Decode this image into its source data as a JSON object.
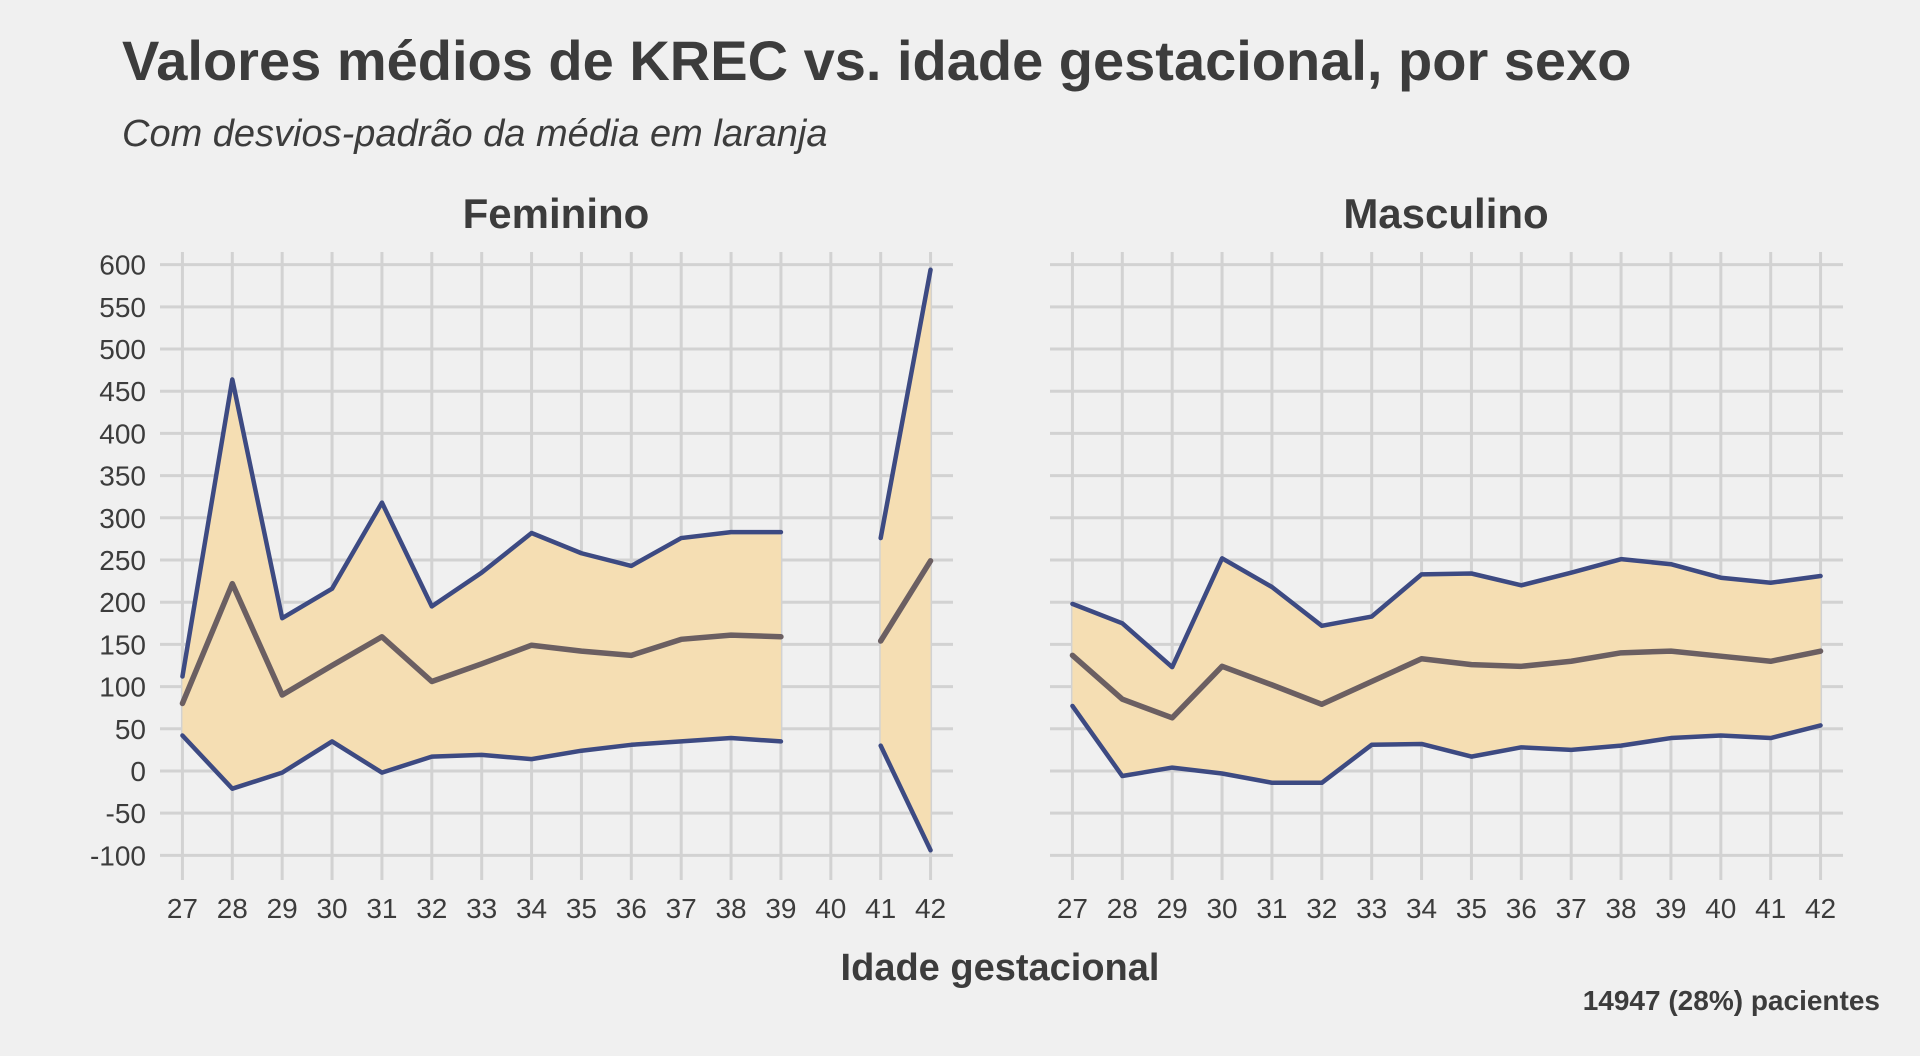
{
  "chart_data": {
    "type": "line",
    "title": "Valores médios de KREC vs. idade gestacional, por sexo",
    "subtitle": "Com desvios-padrão da média em laranja",
    "xlabel": "Idade gestacional",
    "ylabel": "",
    "caption": "14947 (28%) pacientes",
    "ylim": [
      -100,
      600
    ],
    "yticks": [
      -100,
      -50,
      0,
      50,
      100,
      150,
      200,
      250,
      300,
      350,
      400,
      450,
      500,
      550,
      600
    ],
    "xticks": [
      27,
      28,
      29,
      30,
      31,
      32,
      33,
      34,
      35,
      36,
      37,
      38,
      39,
      40,
      41,
      42
    ],
    "grid": true,
    "colors": {
      "band": "#f5deb3",
      "sd_line": "#3d4a82",
      "mean_line": "#6b5f62",
      "grid": "#d2d2d2",
      "background": "#f0f0f0"
    },
    "facets": [
      {
        "label": "Feminino",
        "x": [
          27,
          28,
          29,
          30,
          31,
          32,
          33,
          34,
          35,
          36,
          37,
          38,
          39,
          40,
          41,
          42
        ],
        "mean": [
          80,
          222,
          90,
          125,
          159,
          106,
          127,
          149,
          142,
          137,
          156,
          161,
          159,
          null,
          154,
          249
        ],
        "upper": [
          112,
          464,
          181,
          216,
          318,
          195,
          235,
          282,
          258,
          243,
          276,
          283,
          283,
          null,
          276,
          594
        ],
        "lower": [
          42,
          -21,
          -2,
          35,
          -2,
          17,
          19,
          14,
          24,
          31,
          35,
          39,
          35,
          null,
          30,
          -94
        ]
      },
      {
        "label": "Masculino",
        "x": [
          27,
          28,
          29,
          30,
          31,
          32,
          33,
          34,
          35,
          36,
          37,
          38,
          39,
          40,
          41,
          42
        ],
        "mean": [
          137,
          85,
          63,
          124,
          102,
          79,
          106,
          133,
          126,
          124,
          130,
          140,
          142,
          136,
          130,
          142
        ],
        "upper": [
          198,
          175,
          123,
          252,
          218,
          172,
          183,
          233,
          234,
          220,
          235,
          251,
          245,
          229,
          223,
          231
        ],
        "lower": [
          77,
          -6,
          4,
          -3,
          -14,
          -14,
          31,
          32,
          17,
          28,
          25,
          30,
          39,
          42,
          39,
          54
        ]
      }
    ]
  }
}
